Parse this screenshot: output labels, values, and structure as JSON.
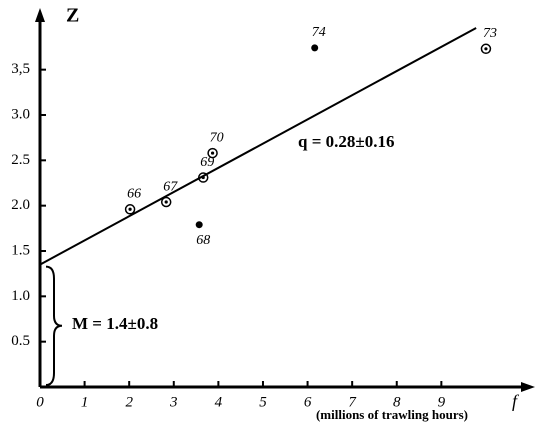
{
  "chart_data": {
    "type": "scatter",
    "y_label": "Z",
    "x_end_label": "f",
    "x_label": "(millions of trawling hours)",
    "xlim": [
      0,
      11.1
    ],
    "ylim": [
      0,
      4.18
    ],
    "xticks": [
      0,
      1,
      2,
      3,
      4,
      5,
      6,
      7,
      8,
      9
    ],
    "yticks": [
      0.5,
      {
        "value": 1,
        "label": "1.0"
      },
      1.5,
      {
        "value": 2,
        "label": "2.0"
      },
      2.5,
      {
        "value": 3,
        "label": "3.0"
      },
      {
        "value": 3.5,
        "label": "3,5"
      }
    ],
    "series": [
      {
        "color": "#000000",
        "x": [
          2.02,
          2.83,
          3.57,
          3.66,
          3.87,
          6.16,
          10.0
        ],
        "values": [
          1.96,
          2.04,
          1.79,
          2.31,
          2.58,
          3.74,
          3.73
        ],
        "labels": [
          "66",
          "67",
          "68",
          "69",
          "70",
          "74",
          "73"
        ],
        "markers": [
          "circle",
          "circle",
          "dot",
          "circle",
          "circle",
          "dot",
          "circle"
        ]
      }
    ],
    "fit_line": {
      "x": [
        0,
        9.78
      ],
      "y": [
        1.35,
        3.96
      ]
    },
    "annotations": [
      "q = 0.28±0.16",
      "M = 1.4±0.8"
    ]
  }
}
